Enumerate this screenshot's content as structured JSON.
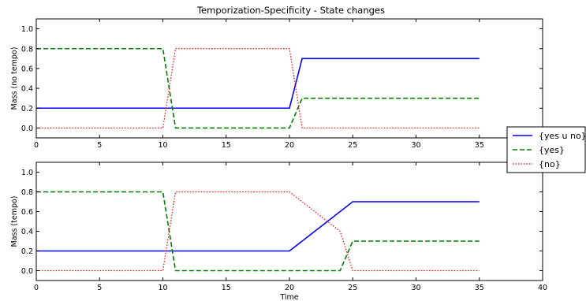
{
  "chart_data": {
    "type": "line",
    "title": "Temporization-Specificity - State changes",
    "legend": {
      "placement": "right",
      "entries": [
        "{yes u no}",
        "{yes}",
        "{no}"
      ]
    },
    "series_styles": [
      {
        "name": "{yes u no}",
        "color": "#0000ff",
        "dash": "solid"
      },
      {
        "name": "{yes}",
        "color": "#008000",
        "dash": "dashed"
      },
      {
        "name": "{no}",
        "color": "#ff0000",
        "dash": "dotted"
      }
    ],
    "panels": [
      {
        "ylabel": "Mass (no tempo)",
        "xlabel": "",
        "xlim": [
          0,
          40
        ],
        "ylim": [
          -0.1,
          1.1
        ],
        "xticks": [
          "0",
          "5",
          "10",
          "15",
          "20",
          "25",
          "30",
          "35",
          "40"
        ],
        "yticks": [
          "0.0",
          "0.2",
          "0.4",
          "0.6",
          "0.8",
          "1.0"
        ],
        "grid": false,
        "series": [
          {
            "name": "{yes u no}",
            "x": [
              0,
              20,
              21,
              35
            ],
            "y": [
              0.2,
              0.2,
              0.7,
              0.7
            ]
          },
          {
            "name": "{yes}",
            "x": [
              0,
              10,
              11,
              20,
              21,
              35
            ],
            "y": [
              0.8,
              0.8,
              0.0,
              0.0,
              0.3,
              0.3
            ]
          },
          {
            "name": "{no}",
            "x": [
              0,
              10,
              11,
              20,
              21,
              35
            ],
            "y": [
              0.0,
              0.0,
              0.8,
              0.8,
              0.0,
              0.0
            ]
          }
        ]
      },
      {
        "ylabel": "Mass (tempo)",
        "xlabel": "Time",
        "xlim": [
          0,
          40
        ],
        "ylim": [
          -0.1,
          1.1
        ],
        "xticks": [
          "0",
          "5",
          "10",
          "15",
          "20",
          "25",
          "30",
          "35",
          "40"
        ],
        "yticks": [
          "0.0",
          "0.2",
          "0.4",
          "0.6",
          "0.8",
          "1.0"
        ],
        "grid": false,
        "series": [
          {
            "name": "{yes u no}",
            "x": [
              0,
              20,
              25,
              35
            ],
            "y": [
              0.2,
              0.2,
              0.7,
              0.7
            ]
          },
          {
            "name": "{yes}",
            "x": [
              0,
              10,
              11,
              24,
              25,
              35
            ],
            "y": [
              0.8,
              0.8,
              0.0,
              0.0,
              0.3,
              0.3
            ]
          },
          {
            "name": "{no}",
            "x": [
              0,
              10,
              11,
              20,
              24,
              25,
              35
            ],
            "y": [
              0.0,
              0.0,
              0.8,
              0.8,
              0.4,
              0.0,
              0.0
            ]
          }
        ]
      }
    ]
  }
}
